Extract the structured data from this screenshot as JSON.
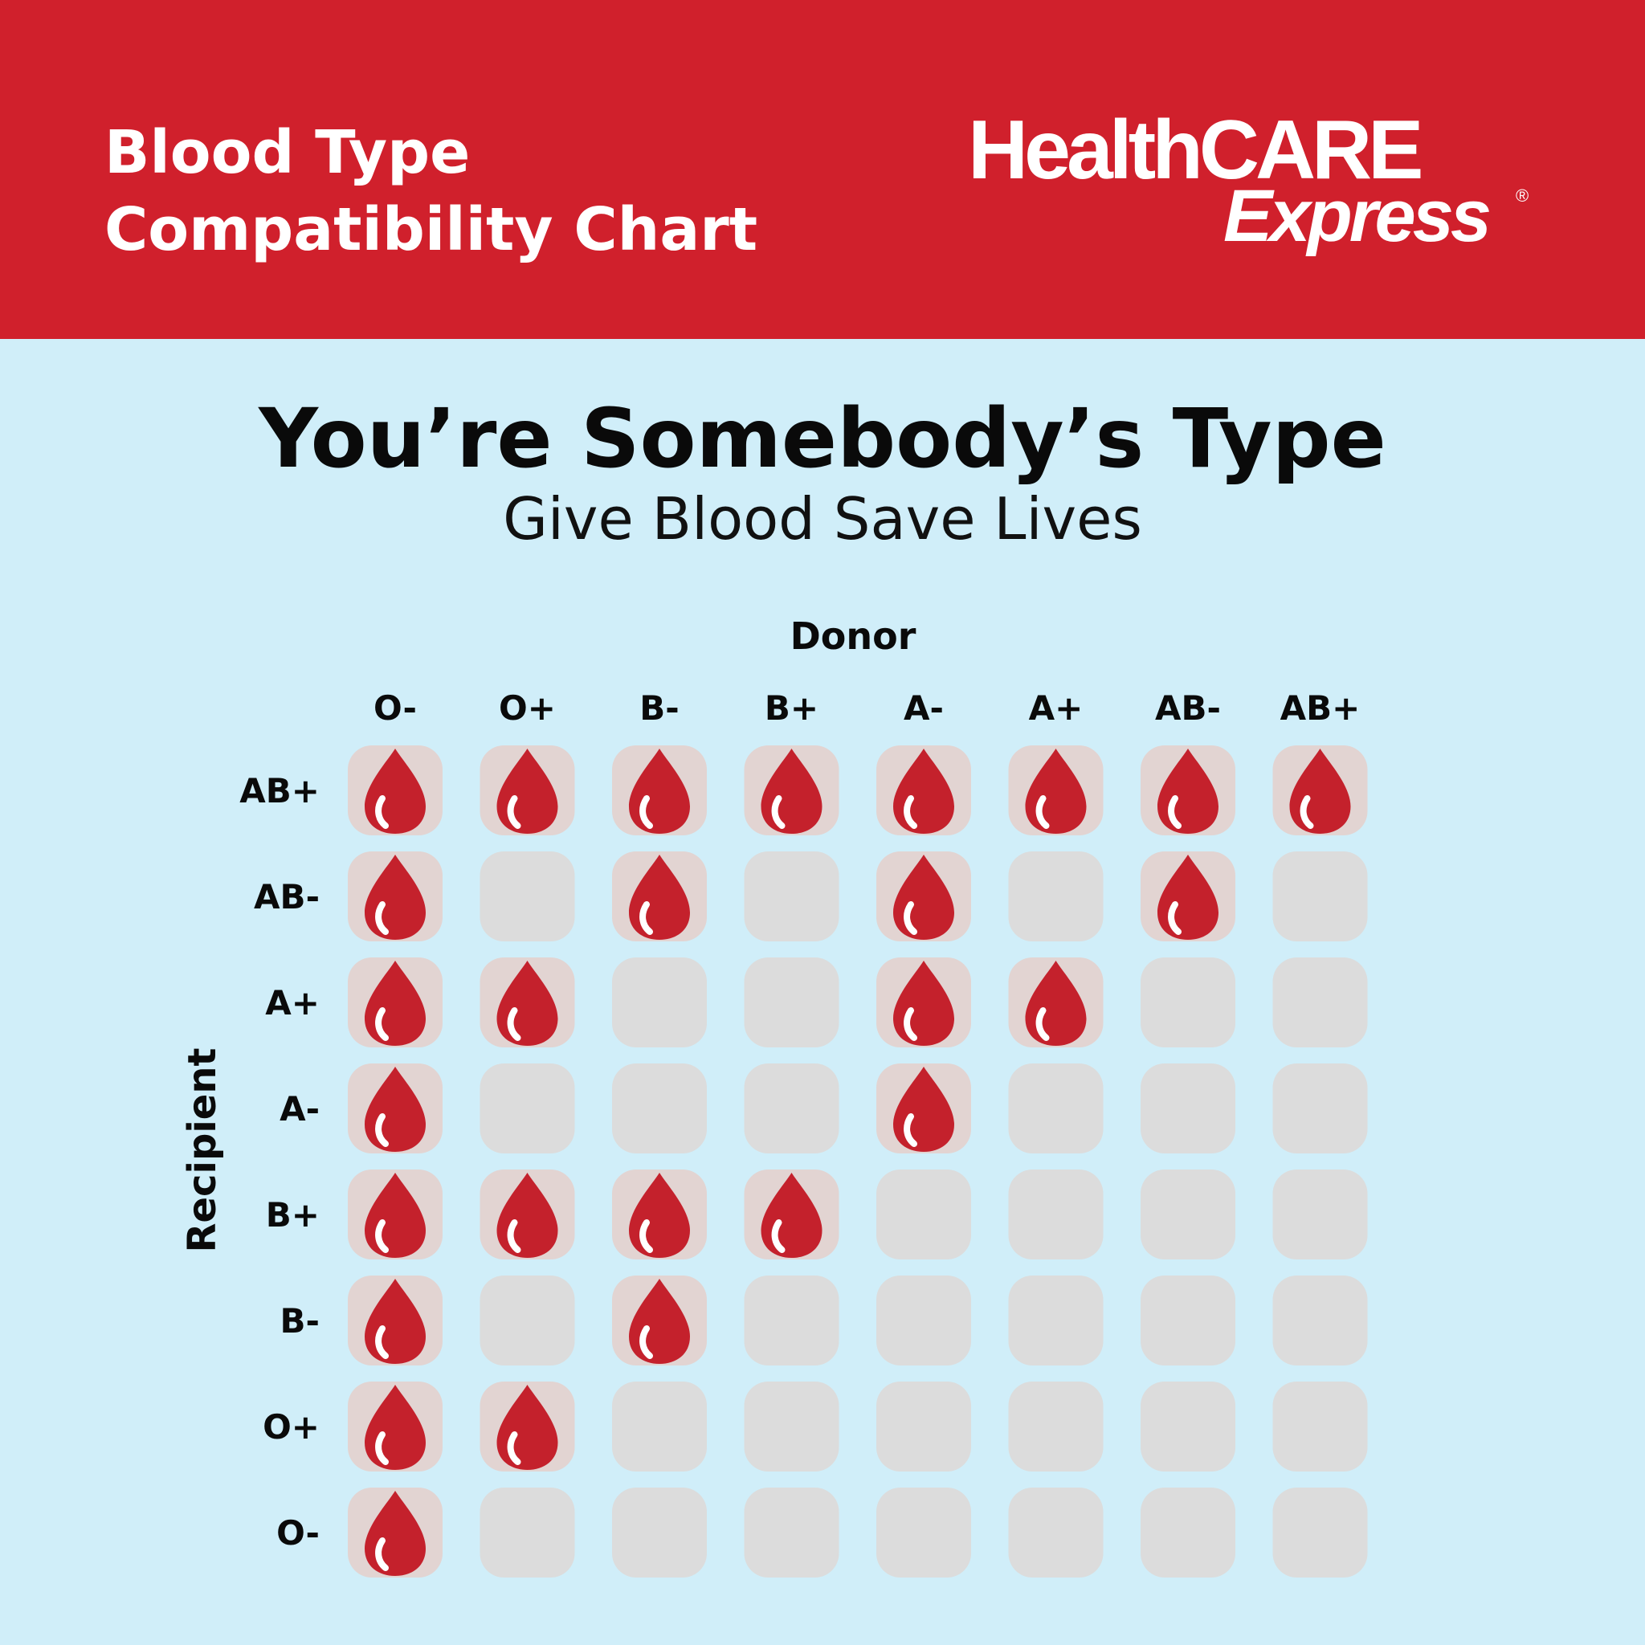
{
  "header": {
    "title_line1": "Blood Type",
    "title_line2": "Compatibility Chart",
    "brand_line1": "HealthCARE",
    "brand_line2": "Express",
    "brand_mark": "®"
  },
  "headline": "You’re Somebody’s Type",
  "subheadline": "Give Blood Save Lives",
  "colors": {
    "header_bg": "#d0202c",
    "page_bg": "#d0eef9",
    "cell_bg": "#dcdcdc",
    "cell_bg_filled": "#e2d4d2",
    "drop": "#c4212c"
  },
  "icons": {
    "compatible": "blood-drop-icon"
  },
  "chart_data": {
    "type": "table",
    "xlabel": "Donor",
    "ylabel": "Recipient",
    "columns": [
      "O-",
      "O+",
      "B-",
      "B+",
      "A-",
      "A+",
      "AB-",
      "AB+"
    ],
    "rows": [
      "AB+",
      "AB-",
      "A+",
      "A-",
      "B+",
      "B-",
      "O+",
      "O-"
    ],
    "values": [
      [
        1,
        1,
        1,
        1,
        1,
        1,
        1,
        1
      ],
      [
        1,
        0,
        1,
        0,
        1,
        0,
        1,
        0
      ],
      [
        1,
        1,
        0,
        0,
        1,
        1,
        0,
        0
      ],
      [
        1,
        0,
        0,
        0,
        1,
        0,
        0,
        0
      ],
      [
        1,
        1,
        1,
        1,
        0,
        0,
        0,
        0
      ],
      [
        1,
        0,
        1,
        0,
        0,
        0,
        0,
        0
      ],
      [
        1,
        1,
        0,
        0,
        0,
        0,
        0,
        0
      ],
      [
        1,
        0,
        0,
        0,
        0,
        0,
        0,
        0
      ]
    ]
  }
}
